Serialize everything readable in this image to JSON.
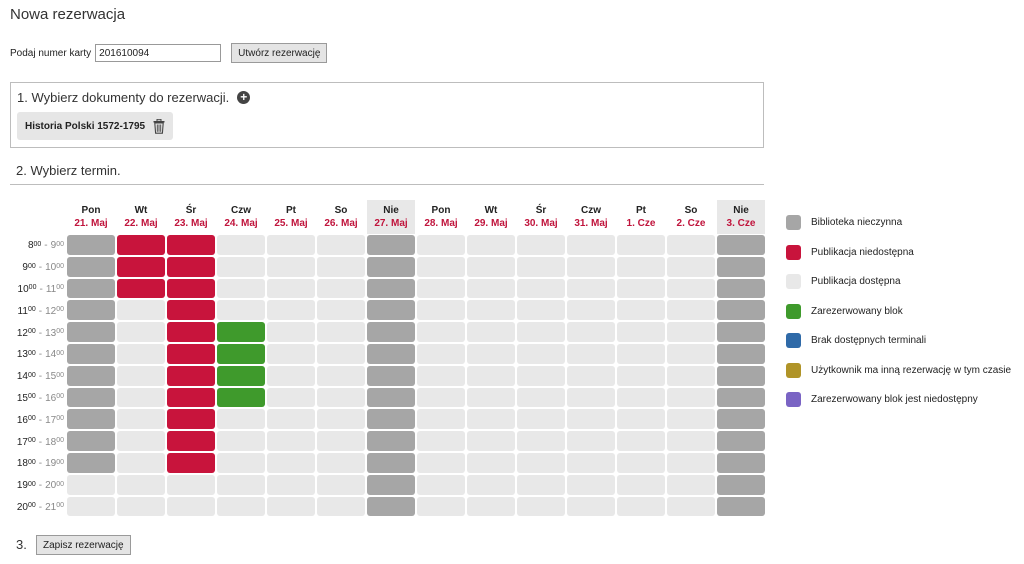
{
  "page": {
    "title": "Nowa rezerwacja"
  },
  "card": {
    "label": "Podaj numer karty",
    "value": "201610094",
    "create_label": "Utwórz rezerwację"
  },
  "section1": {
    "title": "1. Wybierz dokumenty do rezerwacji.",
    "document": "Historia Polski 1572-1795"
  },
  "section2": {
    "title": "2. Wybierz termin."
  },
  "days": [
    {
      "name": "Pon",
      "date": "21. Maj",
      "sunday": false
    },
    {
      "name": "Wt",
      "date": "22. Maj",
      "sunday": false
    },
    {
      "name": "Śr",
      "date": "23. Maj",
      "sunday": false
    },
    {
      "name": "Czw",
      "date": "24. Maj",
      "sunday": false
    },
    {
      "name": "Pt",
      "date": "25. Maj",
      "sunday": false
    },
    {
      "name": "So",
      "date": "26. Maj",
      "sunday": false
    },
    {
      "name": "Nie",
      "date": "27. Maj",
      "sunday": true
    },
    {
      "name": "Pon",
      "date": "28. Maj",
      "sunday": false
    },
    {
      "name": "Wt",
      "date": "29. Maj",
      "sunday": false
    },
    {
      "name": "Śr",
      "date": "30. Maj",
      "sunday": false
    },
    {
      "name": "Czw",
      "date": "31. Maj",
      "sunday": false
    },
    {
      "name": "Pt",
      "date": "1. Cze",
      "sunday": false
    },
    {
      "name": "So",
      "date": "2. Cze",
      "sunday": false
    },
    {
      "name": "Nie",
      "date": "3. Cze",
      "sunday": true
    }
  ],
  "times": [
    {
      "start": "8",
      "end": "9"
    },
    {
      "start": "9",
      "end": "10"
    },
    {
      "start": "10",
      "end": "11"
    },
    {
      "start": "11",
      "end": "12"
    },
    {
      "start": "12",
      "end": "13"
    },
    {
      "start": "13",
      "end": "14"
    },
    {
      "start": "14",
      "end": "15"
    },
    {
      "start": "15",
      "end": "16"
    },
    {
      "start": "16",
      "end": "17"
    },
    {
      "start": "17",
      "end": "18"
    },
    {
      "start": "18",
      "end": "19"
    },
    {
      "start": "19",
      "end": "20"
    },
    {
      "start": "20",
      "end": "21"
    }
  ],
  "time_minutes": "00",
  "time_separator": "-",
  "status_colors": {
    "closed": "#a6a6a6",
    "unavailable": "#c8143c",
    "available": "#e8e8e8",
    "reserved": "#3f9a2c",
    "no_terminals": "#2f6aa8",
    "other_reservation": "#b09428",
    "reserved_unavailable": "#7a64c4"
  },
  "slots": [
    [
      "closed",
      "unavailable",
      "unavailable",
      "available",
      "available",
      "available",
      "closed",
      "available",
      "available",
      "available",
      "available",
      "available",
      "available",
      "closed"
    ],
    [
      "closed",
      "unavailable",
      "unavailable",
      "available",
      "available",
      "available",
      "closed",
      "available",
      "available",
      "available",
      "available",
      "available",
      "available",
      "closed"
    ],
    [
      "closed",
      "unavailable",
      "unavailable",
      "available",
      "available",
      "available",
      "closed",
      "available",
      "available",
      "available",
      "available",
      "available",
      "available",
      "closed"
    ],
    [
      "closed",
      "available",
      "unavailable",
      "available",
      "available",
      "available",
      "closed",
      "available",
      "available",
      "available",
      "available",
      "available",
      "available",
      "closed"
    ],
    [
      "closed",
      "available",
      "unavailable",
      "reserved",
      "available",
      "available",
      "closed",
      "available",
      "available",
      "available",
      "available",
      "available",
      "available",
      "closed"
    ],
    [
      "closed",
      "available",
      "unavailable",
      "reserved",
      "available",
      "available",
      "closed",
      "available",
      "available",
      "available",
      "available",
      "available",
      "available",
      "closed"
    ],
    [
      "closed",
      "available",
      "unavailable",
      "reserved",
      "available",
      "available",
      "closed",
      "available",
      "available",
      "available",
      "available",
      "available",
      "available",
      "closed"
    ],
    [
      "closed",
      "available",
      "unavailable",
      "reserved",
      "available",
      "available",
      "closed",
      "available",
      "available",
      "available",
      "available",
      "available",
      "available",
      "closed"
    ],
    [
      "closed",
      "available",
      "unavailable",
      "available",
      "available",
      "available",
      "closed",
      "available",
      "available",
      "available",
      "available",
      "available",
      "available",
      "closed"
    ],
    [
      "closed",
      "available",
      "unavailable",
      "available",
      "available",
      "available",
      "closed",
      "available",
      "available",
      "available",
      "available",
      "available",
      "available",
      "closed"
    ],
    [
      "closed",
      "available",
      "unavailable",
      "available",
      "available",
      "available",
      "closed",
      "available",
      "available",
      "available",
      "available",
      "available",
      "available",
      "closed"
    ],
    [
      "available",
      "available",
      "available",
      "available",
      "available",
      "available",
      "closed",
      "available",
      "available",
      "available",
      "available",
      "available",
      "available",
      "closed"
    ],
    [
      "available",
      "available",
      "available",
      "available",
      "available",
      "available",
      "closed",
      "available",
      "available",
      "available",
      "available",
      "available",
      "available",
      "closed"
    ]
  ],
  "legend": [
    {
      "status": "closed",
      "label": "Biblioteka nieczynna"
    },
    {
      "status": "unavailable",
      "label": "Publikacja niedostępna"
    },
    {
      "status": "available",
      "label": "Publikacja dostępna"
    },
    {
      "status": "reserved",
      "label": "Zarezerwowany blok"
    },
    {
      "status": "no_terminals",
      "label": "Brak dostępnych terminali"
    },
    {
      "status": "other_reservation",
      "label": "Użytkownik ma inną rezerwację w tym czasie"
    },
    {
      "status": "reserved_unavailable",
      "label": "Zarezerwowany blok jest niedostępny"
    }
  ],
  "section3": {
    "number": "3.",
    "save_label": "Zapisz rezerwację"
  }
}
